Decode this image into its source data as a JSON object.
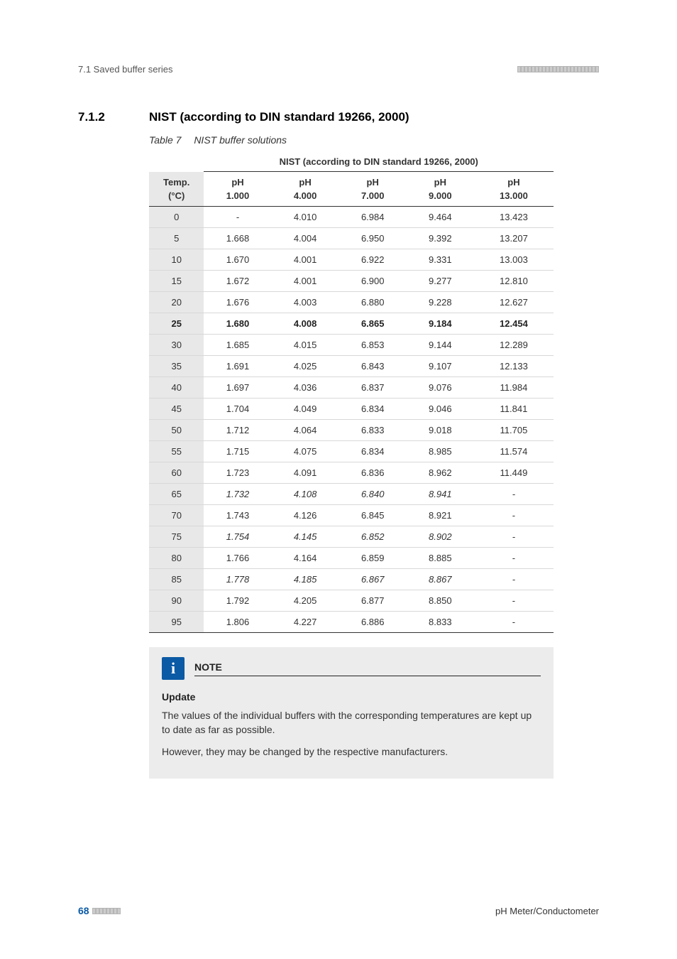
{
  "header": {
    "left": "7.1 Saved buffer series"
  },
  "section": {
    "number": "7.1.2",
    "title": "NIST (according to DIN standard 19266, 2000)"
  },
  "table": {
    "caption_label": "Table 7",
    "caption_text": "NIST buffer solutions",
    "super_header": "NIST (according to DIN standard 19266, 2000)",
    "col1_label": "Temp.",
    "col1_unit": "(°C)",
    "ph_label": "pH",
    "ph_values": [
      "1.000",
      "4.000",
      "7.000",
      "9.000",
      "13.000"
    ],
    "rows": [
      {
        "t": "0",
        "v": [
          "-",
          "4.010",
          "6.984",
          "9.464",
          "13.423"
        ]
      },
      {
        "t": "5",
        "v": [
          "1.668",
          "4.004",
          "6.950",
          "9.392",
          "13.207"
        ]
      },
      {
        "t": "10",
        "v": [
          "1.670",
          "4.001",
          "6.922",
          "9.331",
          "13.003"
        ]
      },
      {
        "t": "15",
        "v": [
          "1.672",
          "4.001",
          "6.900",
          "9.277",
          "12.810"
        ]
      },
      {
        "t": "20",
        "v": [
          "1.676",
          "4.003",
          "6.880",
          "9.228",
          "12.627"
        ]
      },
      {
        "t": "25",
        "v": [
          "1.680",
          "4.008",
          "6.865",
          "9.184",
          "12.454"
        ],
        "bold": true
      },
      {
        "t": "30",
        "v": [
          "1.685",
          "4.015",
          "6.853",
          "9.144",
          "12.289"
        ]
      },
      {
        "t": "35",
        "v": [
          "1.691",
          "4.025",
          "6.843",
          "9.107",
          "12.133"
        ]
      },
      {
        "t": "40",
        "v": [
          "1.697",
          "4.036",
          "6.837",
          "9.076",
          "11.984"
        ]
      },
      {
        "t": "45",
        "v": [
          "1.704",
          "4.049",
          "6.834",
          "9.046",
          "11.841"
        ]
      },
      {
        "t": "50",
        "v": [
          "1.712",
          "4.064",
          "6.833",
          "9.018",
          "11.705"
        ]
      },
      {
        "t": "55",
        "v": [
          "1.715",
          "4.075",
          "6.834",
          "8.985",
          "11.574"
        ]
      },
      {
        "t": "60",
        "v": [
          "1.723",
          "4.091",
          "6.836",
          "8.962",
          "11.449"
        ]
      },
      {
        "t": "65",
        "v": [
          "1.732",
          "4.108",
          "6.840",
          "8.941",
          "-"
        ],
        "italic": true
      },
      {
        "t": "70",
        "v": [
          "1.743",
          "4.126",
          "6.845",
          "8.921",
          "-"
        ]
      },
      {
        "t": "75",
        "v": [
          "1.754",
          "4.145",
          "6.852",
          "8.902",
          "-"
        ],
        "italic": true
      },
      {
        "t": "80",
        "v": [
          "1.766",
          "4.164",
          "6.859",
          "8.885",
          "-"
        ]
      },
      {
        "t": "85",
        "v": [
          "1.778",
          "4.185",
          "6.867",
          "8.867",
          "-"
        ],
        "italic": true
      },
      {
        "t": "90",
        "v": [
          "1.792",
          "4.205",
          "6.877",
          "8.850",
          "-"
        ]
      },
      {
        "t": "95",
        "v": [
          "1.806",
          "4.227",
          "6.886",
          "8.833",
          "-"
        ]
      }
    ]
  },
  "note": {
    "title": "NOTE",
    "subtitle": "Update",
    "p1": "The values of the individual buffers with the corresponding temperatures are kept up to date as far as possible.",
    "p2": "However, they may be changed by the respective manufacturers."
  },
  "footer": {
    "page": "68",
    "label": "pH Meter/Conductometer"
  }
}
